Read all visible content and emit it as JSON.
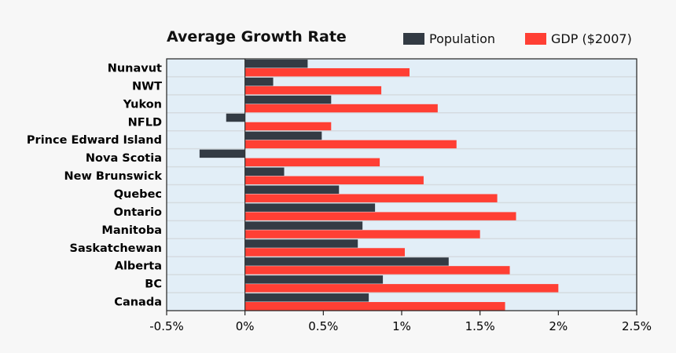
{
  "chart_data": {
    "type": "bar",
    "orientation": "horizontal",
    "title": "Average Growth Rate",
    "xlabel": "",
    "ylabel": "",
    "xlim": [
      -0.5,
      2.5
    ],
    "x_ticks": [
      "-0.5%",
      "0%",
      "0.5%",
      "1%",
      "1.5%",
      "2%",
      "2.5%"
    ],
    "x_tick_values": [
      -0.5,
      0,
      0.5,
      1,
      1.5,
      2,
      2.5
    ],
    "grid": "horizontal",
    "legend": "top-right",
    "categories": [
      "Nunavut",
      "NWT",
      "Yukon",
      "NFLD",
      "Prince Edward Island",
      "Nova Scotia",
      "New Brunswick",
      "Quebec",
      "Ontario",
      "Manitoba",
      "Saskatchewan",
      "Alberta",
      "BC",
      "Canada"
    ],
    "series": [
      {
        "name": "Population",
        "color": "#333b44",
        "values": [
          0.4,
          0.18,
          0.55,
          -0.12,
          0.49,
          -0.29,
          0.25,
          0.6,
          0.83,
          0.75,
          0.72,
          1.3,
          0.88,
          0.79
        ]
      },
      {
        "name": "GDP ($2007)",
        "color": "#ff3f34",
        "values": [
          1.05,
          0.87,
          1.23,
          0.55,
          1.35,
          0.86,
          1.14,
          1.61,
          1.73,
          1.5,
          1.02,
          1.69,
          2.0,
          1.66
        ]
      }
    ],
    "plot_background": "#e2eef7"
  }
}
